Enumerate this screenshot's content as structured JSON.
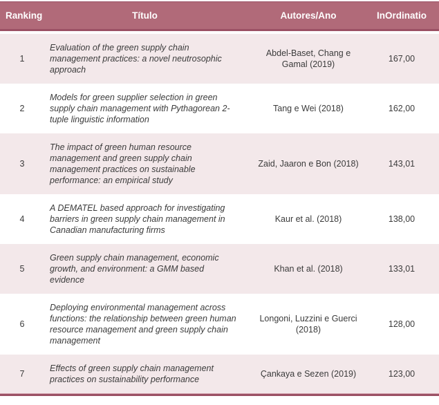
{
  "colors": {
    "header_bg": "#b16a79",
    "header_text": "#ffffff",
    "alt_row_bg": "#f3e8ea",
    "rule": "#9b5064",
    "body_text": "#3b3b3b"
  },
  "table": {
    "headers": {
      "ranking": "Ranking",
      "titulo": "Título",
      "autores": "Autores/Ano",
      "inordinatio": "InOrdinatio"
    },
    "rows": [
      {
        "ranking": "1",
        "titulo": "Evaluation of the green supply chain management practices: a novel neutrosophic approach",
        "autores": "Abdel-Baset, Chang e Gamal (2019)",
        "inordinatio": "167,00"
      },
      {
        "ranking": "2",
        "titulo": "Models for green supplier selection in green supply chain management with Pythagorean 2-tuple linguistic information",
        "autores": "Tang e Wei (2018)",
        "inordinatio": "162,00"
      },
      {
        "ranking": "3",
        "titulo": "The impact of green human resource management and green supply chain management practices on sustainable performance: an empirical study",
        "autores": "Zaid, Jaaron e Bon (2018)",
        "inordinatio": "143,01"
      },
      {
        "ranking": "4",
        "titulo": "A DEMATEL based approach for investigating barriers in green supply chain management in Canadian manufacturing firms",
        "autores": "Kaur et al. (2018)",
        "inordinatio": "138,00"
      },
      {
        "ranking": "5",
        "titulo": "Green supply chain management, economic growth, and environment: a GMM based evidence",
        "autores": "Khan et al. (2018)",
        "inordinatio": "133,01"
      },
      {
        "ranking": "6",
        "titulo": "Deploying environmental management across functions: the relationship between green human resource management and green supply chain management",
        "autores": "Longoni, Luzzini e Guerci (2018)",
        "inordinatio": "128,00"
      },
      {
        "ranking": "7",
        "titulo": "Effects of green supply chain management practices on sustainability performance",
        "autores": "Çankaya e Sezen (2019)",
        "inordinatio": "123,00"
      }
    ]
  }
}
